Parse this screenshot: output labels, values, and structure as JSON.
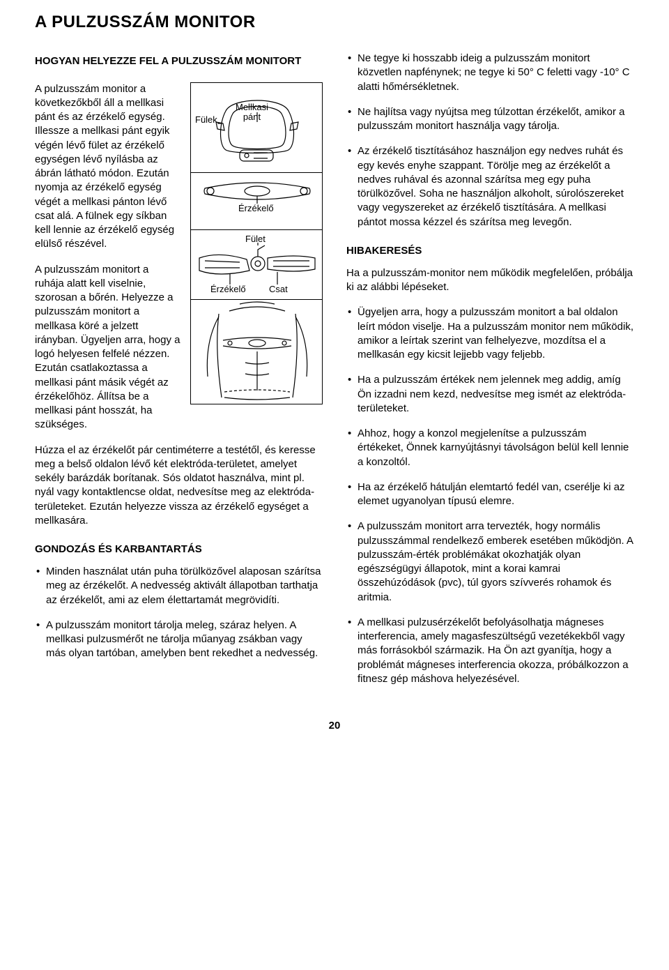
{
  "title": "A PULZUSSZÁM MONITOR",
  "left": {
    "heading1": "HOGYAN HELYEZZE FEL A PULZUSSZÁM MONITORT",
    "para1": "A pulzusszám monitor a következőkből áll a mellkasi pánt és az érzékelő egység. Illessze a mellkasi pánt egyik végén lévő fület az érzékelő egységen lévő nyílásba az ábrán látható módon. Ezután nyomja az érzékelő egység végét a mellkasi pánton lévő csat alá. A fülnek egy síkban kell lennie az érzékelő egység elülső részével.",
    "para2": "A pulzusszám monitort a ruhája alatt kell viselnie, szorosan a bőrén. Helyezze a pulzusszám monitort a mellkasa köré a jelzett irányban. Ügyeljen arra, hogy a logó helyesen felfelé nézzen. Ezután csatlakoztassa a mellkasi pánt másik végét az érzékelőhöz. Állítsa be a mellkasi pánt hosszát, ha szükséges.",
    "para3": "Húzza el az érzékelőt pár centiméterre a testétől, és keresse meg a belső oldalon lévő két elektróda-területet, amelyet sekély barázdák borítanak. Sós oldatot használva, mint pl. nyál vagy kontaktlencse oldat, nedvesítse meg az elektróda-területeket. Ezután helyezze vissza az érzékelő egységet a mellkasára.",
    "heading2": "GONDOZÁS ÉS KARBANTARTÁS",
    "bullets": [
      "Minden használat után puha törülközővel alaposan szárítsa meg az érzékelőt. A nedvesség aktivált állapotban tarthatja az érzékelőt, ami az elem élettartamát megrövidíti.",
      "A pulzusszám monitort tárolja meleg, száraz helyen. A mellkasi pulzusmérőt ne tárolja műanyag zsákban vagy más olyan tartóban, amelyben bent rekedhet a nedvesség."
    ]
  },
  "right": {
    "bullets1": [
      "Ne tegye ki hosszabb ideig a pulzusszám monitort közvetlen napfénynek; ne tegye ki 50° C feletti vagy -10° C alatti hőmérsékletnek.",
      "Ne hajlítsa vagy nyújtsa meg túlzottan érzékelőt, amikor a pulzusszám monitort használja vagy tárolja.",
      "Az érzékelő tisztításához használjon egy nedves ruhát és egy kevés enyhe szappant. Törölje meg az érzékelőt a nedves ruhával és azonnal szárítsa meg egy puha törülközővel. Soha ne használjon alkoholt, súrolószereket vagy vegyszereket az érzékelő tisztítására. A mellkasi pántot mossa kézzel és szárítsa meg levegőn."
    ],
    "heading": "HIBAKERESÉS",
    "para1": "Ha a pulzusszám-monitor nem működik megfelelően, próbálja ki az alábbi lépéseket.",
    "bullets2": [
      "Ügyeljen arra, hogy a pulzusszám monitort a bal oldalon leírt módon viselje. Ha a pulzusszám monitor nem működik, amikor a leírtak szerint van felhelyezve, mozdítsa el a mellkasán egy kicsit lejjebb vagy feljebb.",
      "Ha a pulzusszám értékek nem jelennek meg addig, amíg Ön izzadni nem kezd, nedvesítse meg ismét az elektróda- területeket.",
      "Ahhoz, hogy a konzol megjelenítse a pulzusszám értékeket, Önnek karnyújtásnyi távolságon belül kell lennie a konzoltól.",
      "Ha az érzékelő hátulján elemtartó fedél van, cserélje ki az elemet ugyanolyan típusú elemre.",
      "A pulzusszám monitort arra tervezték, hogy normális pulzusszámmal rendelkező emberek esetében működjön. A pulzusszám-érték problémákat okozhatják olyan egészségügyi állapotok, mint a korai kamrai összehúzódások (pvc), túl gyors szívverés rohamok és aritmia.",
      "A mellkasi pulzusérzékelőt befolyásolhatja mágneses interferencia, amely magasfeszültségű vezetékekből vagy más forrásokból származik. Ha Ön azt gyanítja, hogy a problémát mágneses interferencia okozza, próbálkozzon a fitnesz gép máshova helyezésével."
    ]
  },
  "figure": {
    "labels": {
      "fulek": "Fülek",
      "mellkasi_pant": "Mellkasi\npánt",
      "erzekelo": "Érzékelő",
      "fulet": "Fület",
      "csat": "Csat"
    },
    "colors": {
      "stroke": "#000000",
      "fill": "#ffffff"
    }
  },
  "pageNumber": "20"
}
